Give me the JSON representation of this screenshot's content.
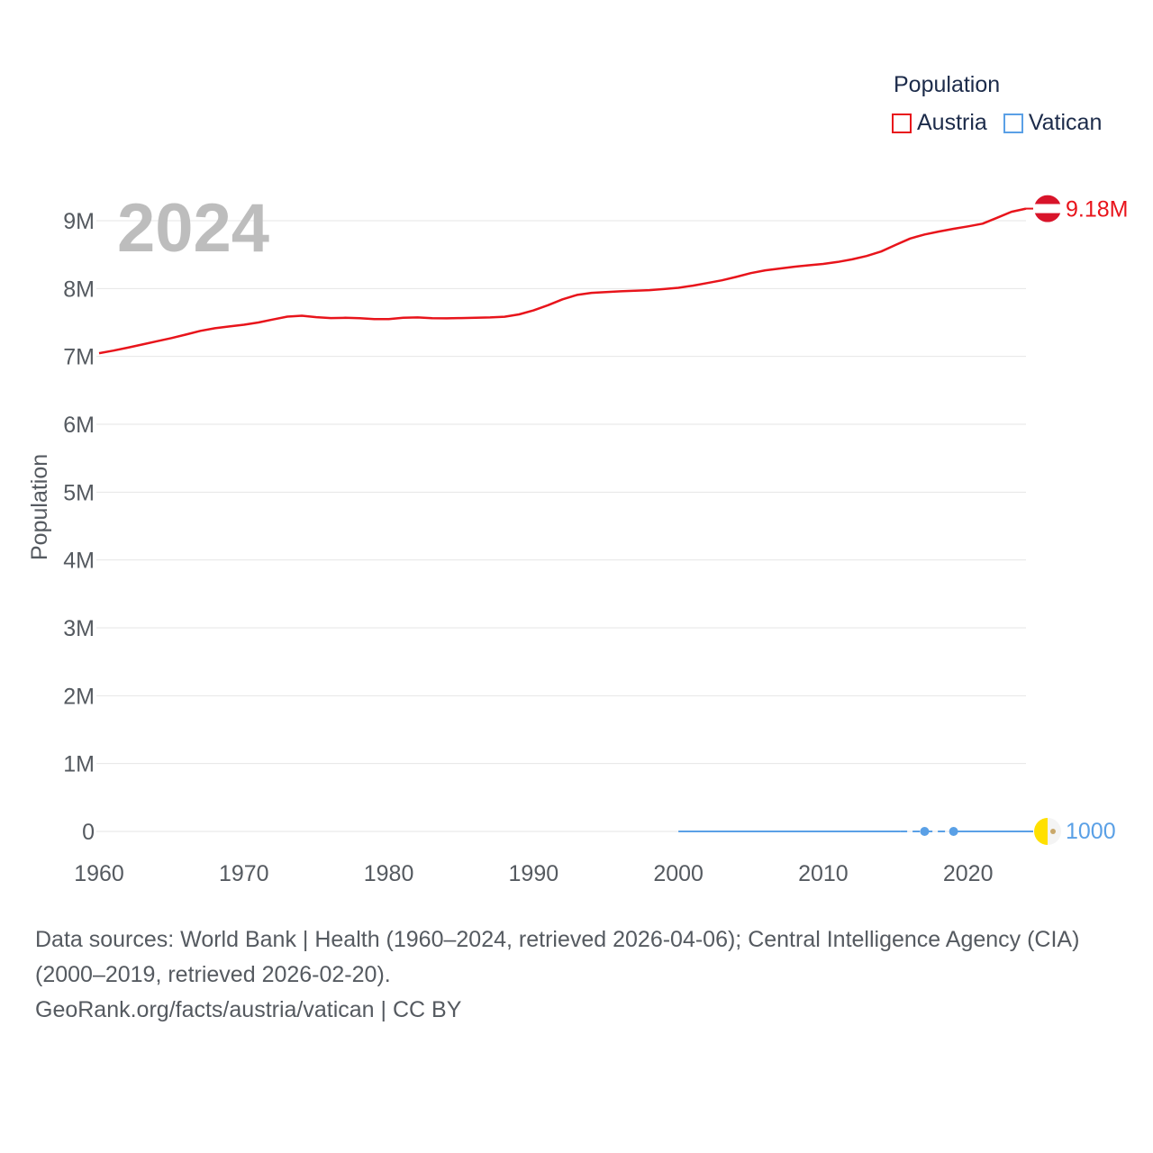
{
  "legend": {
    "title": "Population",
    "items": [
      {
        "label": "Austria",
        "color": "#e8141b"
      },
      {
        "label": "Vatican",
        "color": "#5aa0e6"
      }
    ]
  },
  "year_label": "2024",
  "end_labels": {
    "austria": "9.18M",
    "vatican": "1000"
  },
  "footer": {
    "line1": "Data sources: World Bank | Health (1960–2024, retrieved 2026-04-06); Central Intelligence Agency (CIA)",
    "line2": "(2000–2019, retrieved 2026-02-20).",
    "line3": "GeoRank.org/facts/austria/vatican | CC BY"
  },
  "chart_data": {
    "type": "line",
    "title": "",
    "xlabel": "",
    "ylabel": "Population",
    "xlim": [
      1960,
      2024
    ],
    "ylim": [
      0,
      9000000
    ],
    "x_ticks": [
      1960,
      1970,
      1980,
      1990,
      2000,
      2010,
      2020
    ],
    "y_ticks": [
      {
        "value": 0,
        "label": "0"
      },
      {
        "value": 1000000,
        "label": "1M"
      },
      {
        "value": 2000000,
        "label": "2M"
      },
      {
        "value": 3000000,
        "label": "3M"
      },
      {
        "value": 4000000,
        "label": "4M"
      },
      {
        "value": 5000000,
        "label": "5M"
      },
      {
        "value": 6000000,
        "label": "6M"
      },
      {
        "value": 7000000,
        "label": "7M"
      },
      {
        "value": 8000000,
        "label": "8M"
      },
      {
        "value": 9000000,
        "label": "9M"
      }
    ],
    "series": [
      {
        "name": "Austria",
        "color": "#e8141b",
        "x": [
          1960,
          1961,
          1962,
          1963,
          1964,
          1965,
          1966,
          1967,
          1968,
          1969,
          1970,
          1971,
          1972,
          1973,
          1974,
          1975,
          1976,
          1977,
          1978,
          1979,
          1980,
          1981,
          1982,
          1983,
          1984,
          1985,
          1986,
          1987,
          1988,
          1989,
          1990,
          1991,
          1992,
          1993,
          1994,
          1995,
          1996,
          1997,
          1998,
          1999,
          2000,
          2001,
          2002,
          2003,
          2004,
          2005,
          2006,
          2007,
          2008,
          2009,
          2010,
          2011,
          2012,
          2013,
          2014,
          2015,
          2016,
          2017,
          2018,
          2019,
          2020,
          2021,
          2022,
          2023,
          2024
        ],
        "values": [
          7047539,
          7086299,
          7129864,
          7175811,
          7223801,
          7270889,
          7322066,
          7376998,
          7415403,
          7441055,
          7467086,
          7500482,
          7544201,
          7586115,
          7599038,
          7578903,
          7565525,
          7568430,
          7562305,
          7549425,
          7549433,
          7568710,
          7574140,
          7561910,
          7561434,
          7564985,
          7569794,
          7574586,
          7585317,
          7619567,
          7677850,
          7754891,
          7840709,
          7905633,
          7936118,
          7948278,
          7959017,
          7968041,
          7976789,
          7992324,
          8011566,
          8042293,
          8081957,
          8121423,
          8171966,
          8227829,
          8268641,
          8295487,
          8321496,
          8343323,
          8363404,
          8391643,
          8429991,
          8479823,
          8546356,
          8642699,
          8736668,
          8797566,
          8840521,
          8879920,
          8916864,
          8955797,
          9041851,
          9131761,
          9177982
        ]
      },
      {
        "name": "Vatican",
        "color": "#5aa0e6",
        "x": [
          2000,
          2001,
          2002,
          2003,
          2004,
          2005,
          2006,
          2007,
          2008,
          2009,
          2010,
          2011,
          2012,
          2013,
          2014,
          2015,
          2016,
          2017,
          2018,
          2019,
          2020,
          2021,
          2022,
          2023,
          2024
        ],
        "values": [
          880,
          890,
          900,
          911,
          921,
          932,
          821,
          821,
          824,
          826,
          829,
          832,
          836,
          839,
          842,
          1000,
          1000,
          1000,
          1000,
          1000,
          1000,
          1000,
          1000,
          1000,
          1000
        ],
        "markers_at": [
          2017,
          2019
        ]
      }
    ]
  }
}
